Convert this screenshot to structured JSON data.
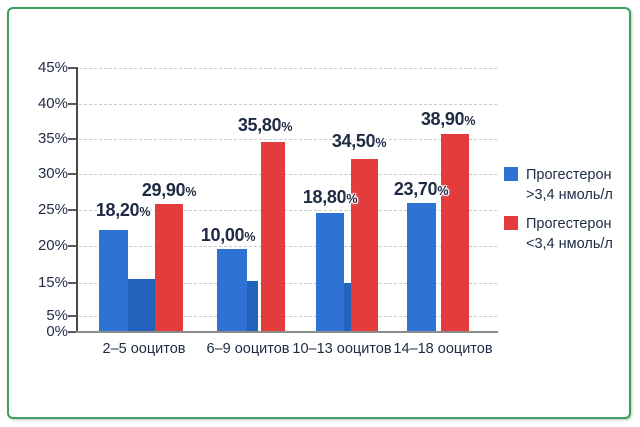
{
  "frame": {
    "border_color": "#3f9e60"
  },
  "colors": {
    "series_blue": "#2e72d4",
    "series_blue_dark": "#2362bc",
    "series_red": "#e23c3c",
    "text": "#1e2a44",
    "gridline": "#cbcbcb"
  },
  "chart_data": {
    "type": "bar",
    "title": "",
    "xlabel": "",
    "ylabel": "",
    "categories": [
      "2–5 ооцитов",
      "6–9 ооцитов",
      "10–13 ооцитов",
      "14–18 ооцитов"
    ],
    "series": [
      {
        "name": "Прогестерон >3,4 нмоль/л",
        "color": "#2e72d4",
        "values": [
          18.2,
          10.0,
          18.8,
          23.7
        ],
        "labels": [
          "18,20%",
          "10,00%",
          "18,80%",
          "23,70%"
        ]
      },
      {
        "name": "Прогестерон <3,4 нмоль/л",
        "color": "#e23c3c",
        "values": [
          29.9,
          35.8,
          34.5,
          38.9
        ],
        "labels": [
          "29,90%",
          "35,80%",
          "34,50%",
          "38,90%"
        ]
      }
    ],
    "unlabeled_extra_bars": {
      "comment_free_visual_percent": [
        15.5,
        15.2,
        14.9,
        null
      ],
      "color": "#2362bc"
    },
    "y_ticks": [
      "45%",
      "40%",
      "35%",
      "30%",
      "25%",
      "20%",
      "15%",
      "5%",
      "0%"
    ],
    "ylim": [
      0,
      45
    ],
    "grid": "dashed-horizontal",
    "legend_position": "right"
  },
  "legend": {
    "items": [
      {
        "line1": "Прогестерон",
        "line2": ">3,4 нмоль/л",
        "color": "#2e72d4"
      },
      {
        "line1": "Прогестерон",
        "line2": "<3,4 нмоль/л",
        "color": "#e23c3c"
      }
    ]
  }
}
